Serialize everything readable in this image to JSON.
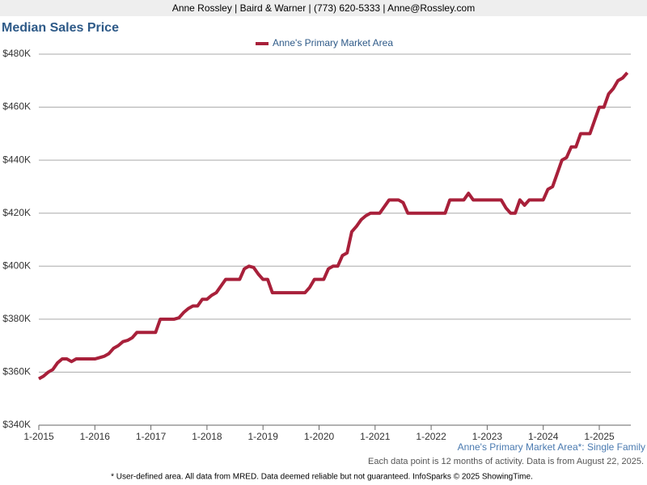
{
  "header": "Anne Rossley | Baird & Warner | (773) 620-5333 | Anne@Rossley.com",
  "chart_data": {
    "type": "line",
    "title": "Median Sales Price",
    "categories": [
      "1-2015",
      null,
      null,
      null,
      null,
      null,
      null,
      null,
      null,
      null,
      null,
      null,
      "1-2016",
      null,
      null,
      null,
      null,
      null,
      null,
      null,
      null,
      null,
      null,
      null,
      "1-2017",
      null,
      null,
      null,
      null,
      null,
      null,
      null,
      null,
      null,
      null,
      null,
      "1-2018",
      null,
      null,
      null,
      null,
      null,
      null,
      null,
      null,
      null,
      null,
      null,
      "1-2019",
      null,
      null,
      null,
      null,
      null,
      null,
      null,
      null,
      null,
      null,
      null,
      "1-2020",
      null,
      null,
      null,
      null,
      null,
      null,
      null,
      null,
      null,
      null,
      null,
      "1-2021",
      null,
      null,
      null,
      null,
      null,
      null,
      null,
      null,
      null,
      null,
      null,
      "1-2022",
      null,
      null,
      null,
      null,
      null,
      null,
      null,
      null,
      null,
      null,
      null,
      "1-2023",
      null,
      null,
      null,
      null,
      null,
      null,
      null,
      null,
      null,
      null,
      null,
      "1-2024",
      null,
      null,
      null,
      null,
      null,
      null,
      null,
      null,
      null,
      null,
      null,
      "1-2025",
      null,
      null,
      null,
      null,
      null,
      null
    ],
    "series": [
      {
        "name": "Anne's Primary Market Area",
        "color": "#a8203a",
        "values": [
          357500,
          358500,
          360000,
          361000,
          363500,
          365000,
          365000,
          364000,
          365000,
          365000,
          365000,
          365000,
          365000,
          365500,
          366000,
          367000,
          369000,
          370000,
          371500,
          372000,
          373000,
          375000,
          375000,
          375000,
          375000,
          375000,
          380000,
          380000,
          380000,
          380000,
          380500,
          382500,
          384000,
          385000,
          385000,
          387500,
          387500,
          389000,
          390000,
          392500,
          395000,
          395000,
          395000,
          395000,
          399000,
          400000,
          399500,
          397000,
          395000,
          395000,
          390000,
          390000,
          390000,
          390000,
          390000,
          390000,
          390000,
          390000,
          392000,
          395000,
          395000,
          395000,
          399000,
          400000,
          400000,
          404000,
          405000,
          413000,
          415000,
          417500,
          419000,
          420000,
          420000,
          420000,
          422500,
          425000,
          425000,
          425000,
          424000,
          420000,
          420000,
          420000,
          420000,
          420000,
          420000,
          420000,
          420000,
          420000,
          425000,
          425000,
          425000,
          425000,
          427500,
          425000,
          425000,
          425000,
          425000,
          425000,
          425000,
          425000,
          422000,
          420000,
          420000,
          425000,
          423000,
          425000,
          425000,
          425000,
          425000,
          429000,
          430000,
          435000,
          440000,
          441000,
          445000,
          445000,
          450000,
          450000,
          450000,
          455000,
          460000,
          460000,
          465000,
          467000,
          470000,
          471000,
          473000
        ]
      }
    ],
    "ylim": [
      340000,
      480000
    ],
    "yticks": [
      {
        "value": 340000,
        "label": "$340K"
      },
      {
        "value": 360000,
        "label": "$360K"
      },
      {
        "value": 380000,
        "label": "$380K"
      },
      {
        "value": 400000,
        "label": "$400K"
      },
      {
        "value": 420000,
        "label": "$420K"
      },
      {
        "value": 440000,
        "label": "$440K"
      },
      {
        "value": 460000,
        "label": "$460K"
      },
      {
        "value": 480000,
        "label": "$480K"
      }
    ],
    "grid": true,
    "legend": "top"
  },
  "footer": {
    "area": "Anne's Primary Market Area*: Single Family",
    "note": "Each data point is 12 months of activity. Data is from August 22, 2025.",
    "disclaimer": "* User-defined area. All data from MRED. Data deemed reliable but not guaranteed. InfoSparks © 2025 ShowingTime."
  }
}
